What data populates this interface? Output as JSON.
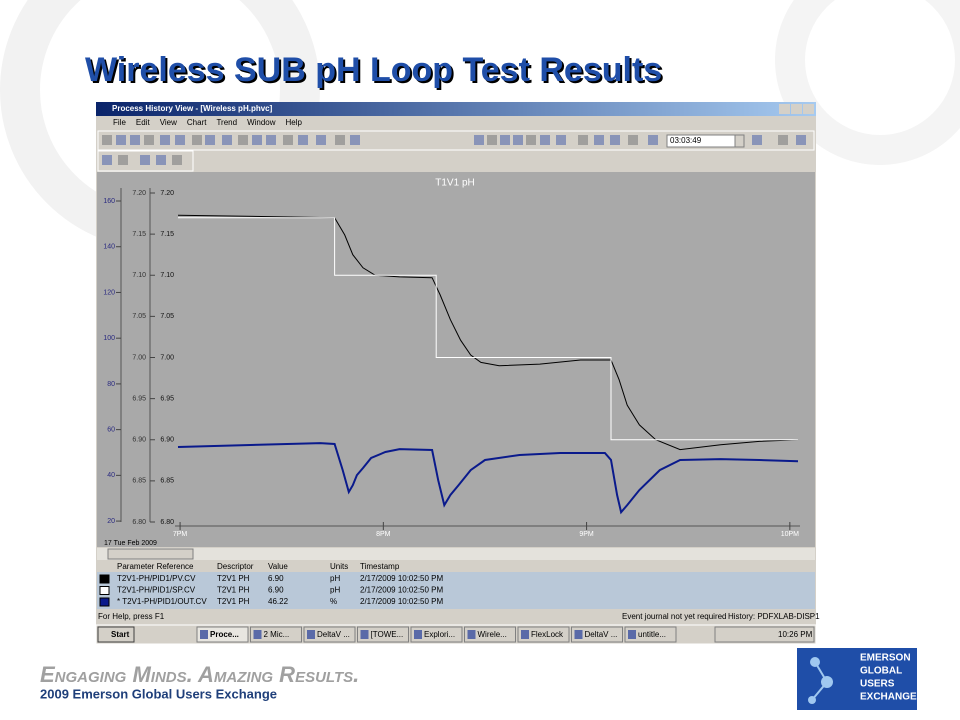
{
  "slide": {
    "title": "Wireless SUB pH Loop Test Results",
    "tagline": "Engaging Minds. Amazing Results.",
    "event": "2009 Emerson Global Users Exchange",
    "logo": [
      "EMERSON",
      "GLOBAL",
      "USERS",
      "EXCHANGE"
    ]
  },
  "window": {
    "title": "Process History View - [Wireless pH.phvc]",
    "menu": [
      "File",
      "Edit",
      "View",
      "Chart",
      "Trend",
      "Window",
      "Help"
    ],
    "time": "03:03:49",
    "date": "17 Tue Feb 2009",
    "status": [
      "For Help, press F1",
      "Event journal not yet required",
      "History: PDFXLAB-DISP1"
    ]
  },
  "table": {
    "header": [
      "Parameter Reference",
      "Descriptor",
      "Value",
      "Units",
      "Timestamp"
    ],
    "rows": [
      [
        "T2V1 PH",
        "6.90",
        "pH",
        "2/17/2009 10:02:50 PM"
      ],
      [
        "T2V1 PH",
        "6.90",
        "pH",
        "2/17/2009 10:02:50 PM"
      ],
      [
        "T2V1 PH",
        "46.22",
        "%",
        "2/17/2009 10:02:50 PM"
      ]
    ]
  },
  "taskbar": {
    "start": "Start",
    "items": [
      "Proce...",
      "2 Mic...",
      "DeltaV ...",
      "[TOWE...",
      "Explori...",
      "Wirele...",
      "FlexLock",
      "DeltaV ...",
      "untitle..."
    ],
    "clock": "10:26 PM"
  },
  "chart_data": {
    "type": "line",
    "title": "T1V1 pH",
    "xlim": [
      18.975,
      22.05
    ],
    "xticks": [
      {
        "value": 19,
        "label": "7PM"
      },
      {
        "value": 20,
        "label": "8PM"
      },
      {
        "value": 21,
        "label": "9PM"
      },
      {
        "value": 22,
        "label": "10PM"
      }
    ],
    "ylim": [
      6.8,
      7.2
    ],
    "yticks": [
      {
        "value": 6.8,
        "label": "6.80"
      },
      6.85,
      {
        "value": 6.9,
        "label": "6.90"
      },
      6.95,
      {
        "value": 7,
        "label": "7.00"
      },
      7.05,
      {
        "value": 7.1,
        "label": "7.10"
      },
      7.15,
      {
        "value": 7.2,
        "label": "7.20"
      }
    ],
    "y2lim": [
      19.6,
      163.5
    ],
    "y2ticks": [
      20,
      40,
      60,
      80,
      100,
      120,
      140,
      160
    ],
    "series": [
      {
        "name": "T2V1-PH/PID1/PV.CV",
        "color": "#000000",
        "x": [
          18.99,
          19.76,
          19.81,
          19.85,
          19.9,
          19.96,
          20.08,
          20.24,
          20.28,
          20.33,
          20.38,
          20.43,
          20.48,
          20.57,
          20.77,
          20.97,
          21.12,
          21.16,
          21.2,
          21.26,
          21.34,
          21.46,
          21.66,
          21.85,
          22.04
        ],
        "values": [
          7.173,
          7.17,
          7.149,
          7.125,
          7.109,
          7.1,
          7.098,
          7.097,
          7.076,
          7.046,
          7.021,
          7.003,
          6.994,
          6.99,
          6.992,
          6.997,
          6.997,
          6.973,
          6.942,
          6.918,
          6.9,
          6.888,
          6.894,
          6.898,
          6.9
        ]
      },
      {
        "name": "T2V1-PH/PID1/SP.CV",
        "color": "#ffffff",
        "x": [
          18.99,
          19.76,
          19.76,
          20.26,
          20.26,
          21.12,
          21.12,
          22.04
        ],
        "values": [
          7.17,
          7.17,
          7.1,
          7.1,
          7,
          7,
          6.9,
          6.9
        ]
      },
      {
        "name": "* T2V1-PH/PID1/OUT.CV",
        "color": "#0a1a8c",
        "axis": "y2",
        "x": [
          18.99,
          19.69,
          19.76,
          19.8,
          19.83,
          19.85,
          19.87,
          19.9,
          19.94,
          20.01,
          20.08,
          20.24,
          20.27,
          20.3,
          20.33,
          20.37,
          20.43,
          20.5,
          20.67,
          20.87,
          21.09,
          21.12,
          21.15,
          21.17,
          21.2,
          21.26,
          21.36,
          21.46,
          21.66,
          21.85,
          22.04
        ],
        "values": [
          52.4,
          54.1,
          53.7,
          42.3,
          32.7,
          35.7,
          40.1,
          43.2,
          47.6,
          50.2,
          51.5,
          51.1,
          37.9,
          27,
          31.4,
          35.7,
          42.3,
          46.7,
          48.9,
          49.8,
          49.8,
          46.7,
          31.4,
          23.9,
          27,
          33.6,
          42.3,
          46.7,
          47.1,
          46.7,
          46.2
        ]
      }
    ]
  }
}
